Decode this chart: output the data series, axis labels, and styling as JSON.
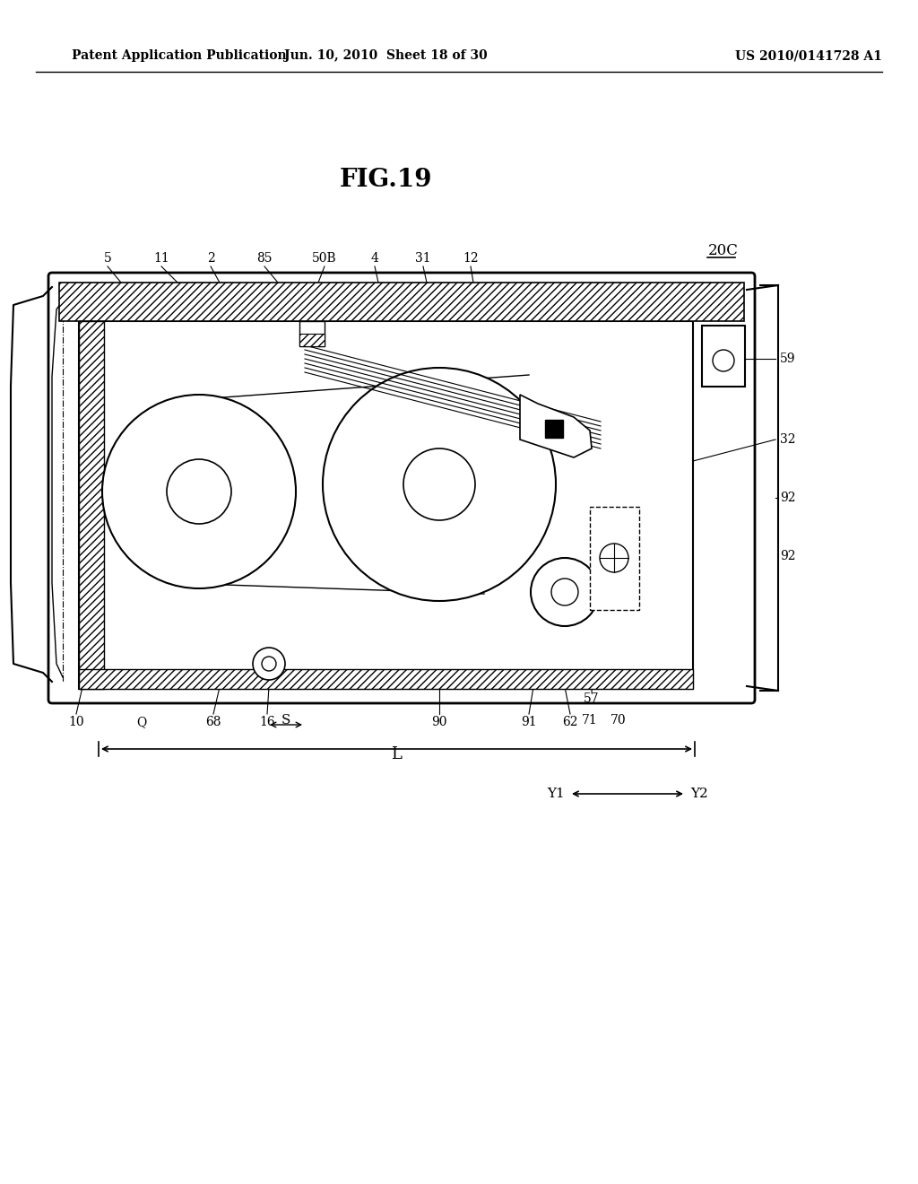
{
  "bg_color": "#ffffff",
  "header_left": "Patent Application Publication",
  "header_mid": "Jun. 10, 2010  Sheet 18 of 30",
  "header_right": "US 2010/0141728 A1",
  "fig_title": "FIG.19",
  "fig_label": "20C"
}
